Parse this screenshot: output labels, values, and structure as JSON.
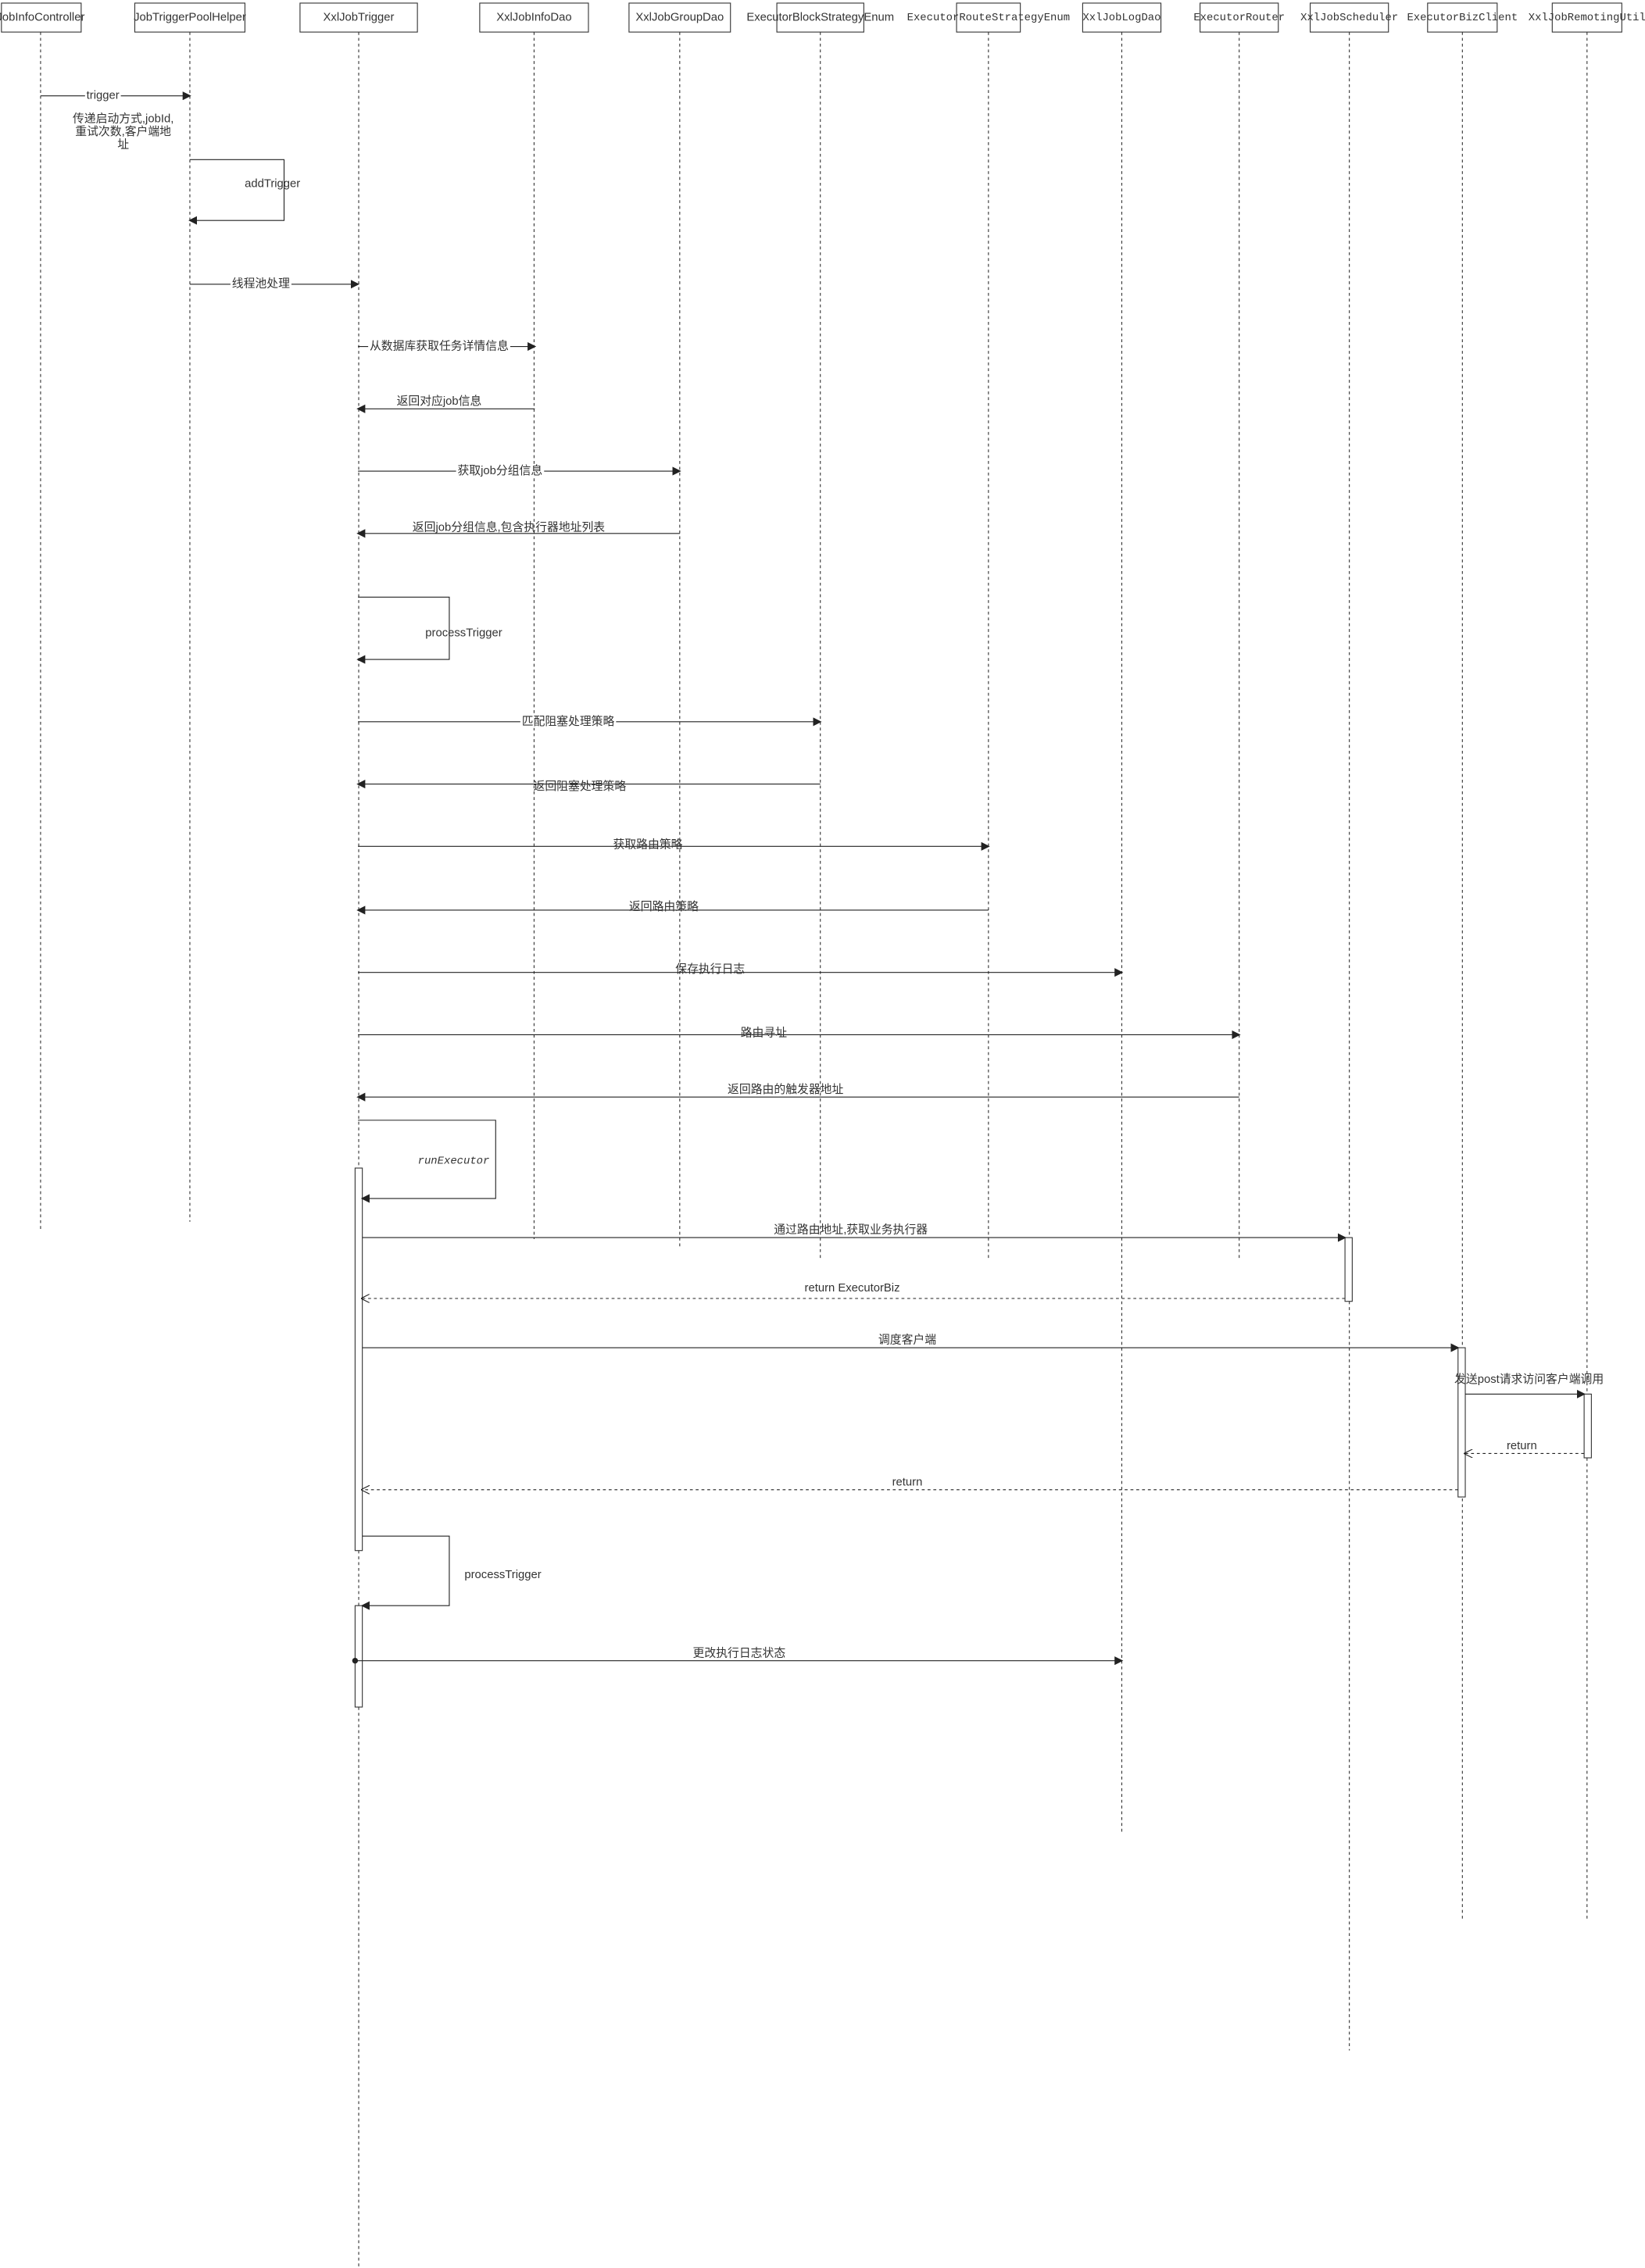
{
  "participants": [
    "JobInfoController",
    "JobTriggerPoolHelper",
    "XxlJobTrigger",
    "XxlJobInfoDao",
    "XxlJobGroupDao",
    "ExecutorBlockStrategyEnum",
    "ExecutorRouteStrategyEnum",
    "XxlJobLogDao",
    "ExecutorRouter",
    "XxlJobScheduler",
    "ExecutorBizClient",
    "XxlJobRemotingUtil"
  ],
  "note": {
    "lines": [
      "传递启动方式,jobId,",
      "重试次数,客户端地",
      "址"
    ]
  },
  "messages": [
    {
      "label": "trigger"
    },
    {
      "label": "addTrigger"
    },
    {
      "label": "线程池处理"
    },
    {
      "label": "从数据库获取任务详情信息"
    },
    {
      "label": "返回对应job信息"
    },
    {
      "label": "获取job分组信息"
    },
    {
      "label": "返回job分组信息,包含执行器地址列表"
    },
    {
      "label": "processTrigger"
    },
    {
      "label": "匹配阻塞处理策略"
    },
    {
      "label": "返回阻塞处理策略"
    },
    {
      "label": "获取路由策略"
    },
    {
      "label": "返回路由策略"
    },
    {
      "label": "保存执行日志"
    },
    {
      "label": "路由寻址"
    },
    {
      "label": "返回路由的触发器地址"
    },
    {
      "label": "runExecutor"
    },
    {
      "label": "通过路由地址,获取业务执行器"
    },
    {
      "label": "return ExecutorBiz"
    },
    {
      "label": "调度客户端"
    },
    {
      "label": "发送post请求访问客户端调用"
    },
    {
      "label": "return"
    },
    {
      "label": "return"
    },
    {
      "label": "processTrigger"
    },
    {
      "label": "更改执行日志状态"
    }
  ]
}
